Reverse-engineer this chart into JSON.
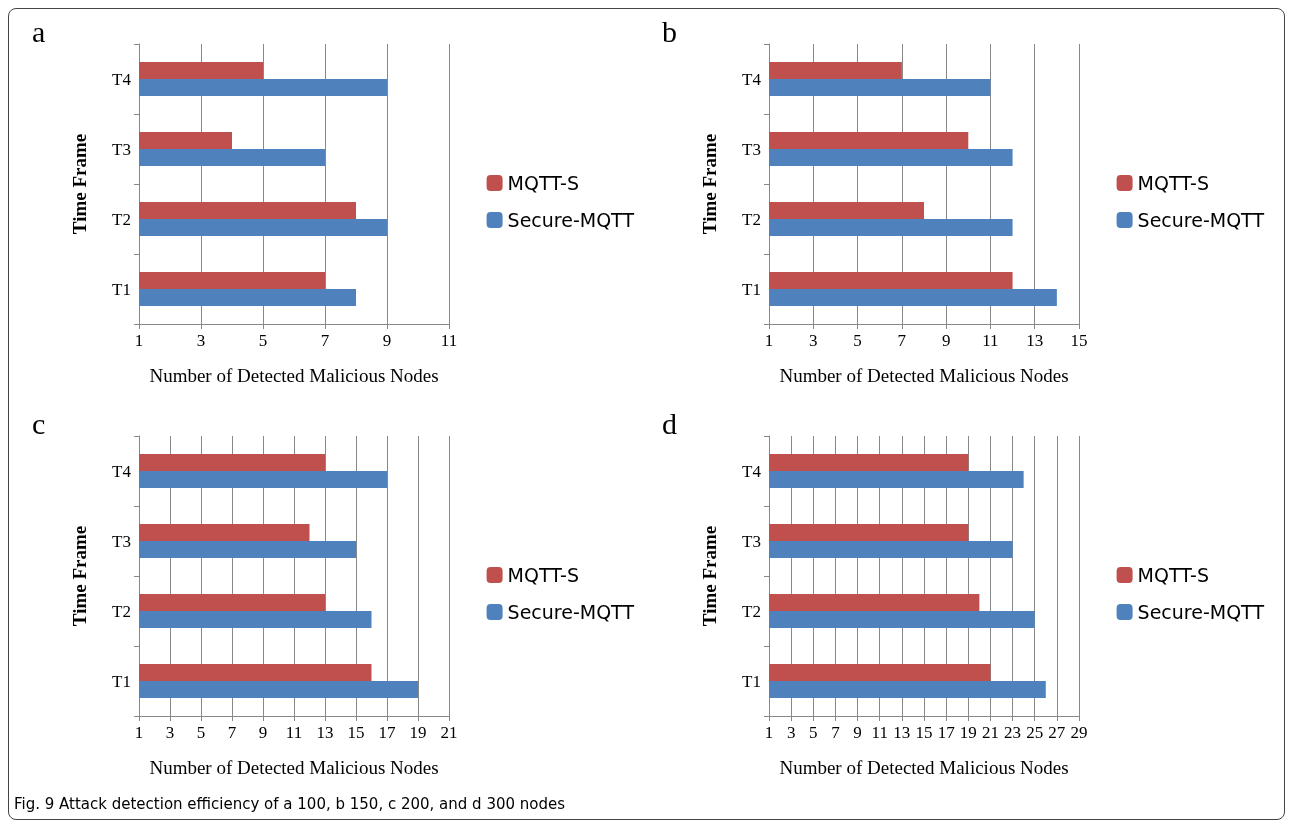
{
  "chart_data": [
    {
      "type": "bar",
      "orientation": "horizontal",
      "title": "a",
      "xlabel": "Number of Detected Malicious Nodes",
      "ylabel": "Time Frame",
      "categories": [
        "T4",
        "T3",
        "T2",
        "T1"
      ],
      "xlim": [
        1,
        11
      ],
      "xticks": [
        1,
        3,
        5,
        7,
        9,
        11
      ],
      "grid": "x",
      "legend": "right",
      "series": [
        {
          "name": "MQTT-S",
          "color": "#c0504d",
          "values": [
            5,
            4,
            8,
            7
          ]
        },
        {
          "name": "Secure-MQTT",
          "color": "#4f81bd",
          "values": [
            9,
            7,
            9,
            8
          ]
        }
      ]
    },
    {
      "type": "bar",
      "orientation": "horizontal",
      "title": "b",
      "xlabel": "Number of Detected Malicious Nodes",
      "ylabel": "Time Frame",
      "categories": [
        "T4",
        "T3",
        "T2",
        "T1"
      ],
      "xlim": [
        1,
        15
      ],
      "xticks": [
        1,
        3,
        5,
        7,
        9,
        11,
        13,
        15
      ],
      "grid": "x",
      "legend": "right",
      "series": [
        {
          "name": "MQTT-S",
          "color": "#c0504d",
          "values": [
            7,
            10,
            8,
            12
          ]
        },
        {
          "name": "Secure-MQTT",
          "color": "#4f81bd",
          "values": [
            11,
            12,
            12,
            14
          ]
        }
      ]
    },
    {
      "type": "bar",
      "orientation": "horizontal",
      "title": "c",
      "xlabel": "Number of Detected Malicious Nodes",
      "ylabel": "Time Frame",
      "categories": [
        "T4",
        "T3",
        "T2",
        "T1"
      ],
      "xlim": [
        1,
        21
      ],
      "xticks": [
        1,
        3,
        5,
        7,
        9,
        11,
        13,
        15,
        17,
        19,
        21
      ],
      "grid": "x",
      "legend": "right",
      "series": [
        {
          "name": "MQTT-S",
          "color": "#c0504d",
          "values": [
            13,
            12,
            13,
            16
          ]
        },
        {
          "name": "Secure-MQTT",
          "color": "#4f81bd",
          "values": [
            17,
            15,
            16,
            19
          ]
        }
      ]
    },
    {
      "type": "bar",
      "orientation": "horizontal",
      "title": "d",
      "xlabel": "Number of Detected Malicious Nodes",
      "ylabel": "Time Frame",
      "categories": [
        "T4",
        "T3",
        "T2",
        "T1"
      ],
      "xlim": [
        1,
        29
      ],
      "xticks": [
        1,
        3,
        5,
        7,
        9,
        11,
        13,
        15,
        17,
        19,
        21,
        23,
        25,
        27,
        29
      ],
      "grid": "x",
      "legend": "right",
      "annotations": [
        "Fig. 9 Attack detection efficiency of a 100, b 150, c 200, and d 300 nodes"
      ],
      "series": [
        {
          "name": "MQTT-S",
          "color": "#c0504d",
          "values": [
            19,
            19,
            20,
            21
          ]
        },
        {
          "name": "Secure-MQTT",
          "color": "#4f81bd",
          "values": [
            24,
            23,
            25,
            26
          ]
        }
      ]
    }
  ]
}
